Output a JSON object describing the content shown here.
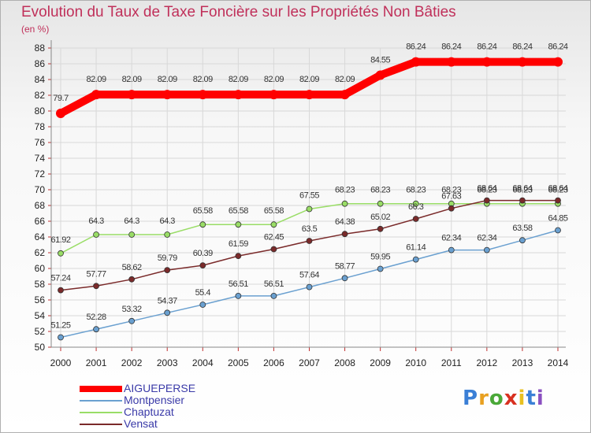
{
  "chart_data": {
    "type": "line",
    "title": "Evolution du Taux de Taxe Foncière sur les Propriétés Non Bâties",
    "ylabel": "(en %)",
    "x": [
      "2000",
      "2001",
      "2002",
      "2003",
      "2004",
      "2005",
      "2006",
      "2007",
      "2008",
      "2009",
      "2010",
      "2011",
      "2012",
      "2013",
      "2014"
    ],
    "ylim": [
      50,
      88
    ],
    "yticks": [
      50,
      52,
      54,
      56,
      58,
      60,
      62,
      64,
      66,
      68,
      70,
      72,
      74,
      76,
      78,
      80,
      82,
      84,
      86,
      88
    ],
    "grid": true,
    "legend_position": "bottom-left",
    "series": [
      {
        "name": "AIGUEPERSE",
        "color": "#ff0000",
        "values": [
          79.7,
          82.09,
          82.09,
          82.09,
          82.09,
          82.09,
          82.09,
          82.09,
          82.09,
          84.55,
          86.24,
          86.24,
          86.24,
          86.24,
          86.24
        ],
        "labels": [
          "79.7",
          "82.09",
          "82.09",
          "82.09",
          "82.09",
          "82.09",
          "82.09",
          "82.09",
          "82.09",
          "84.55",
          "86.24",
          "86.24",
          "86.24",
          "86.24",
          "86.24"
        ]
      },
      {
        "name": "Montpensier",
        "color": "#6aa0d0",
        "values": [
          51.25,
          52.28,
          53.32,
          54.37,
          55.4,
          56.51,
          56.51,
          57.64,
          58.77,
          59.95,
          61.14,
          62.34,
          62.34,
          63.58,
          64.85
        ],
        "labels": [
          "51.25",
          "52.28",
          "53.32",
          "54.37",
          "55.4",
          "56.51",
          "56.51",
          "57.64",
          "58.77",
          "59.95",
          "61.14",
          "62.34",
          "62.34",
          "63.58",
          "64.85"
        ]
      },
      {
        "name": "Chaptuzat",
        "color": "#99dd66",
        "values": [
          61.92,
          64.3,
          64.3,
          64.3,
          65.58,
          65.58,
          65.58,
          67.55,
          68.23,
          68.23,
          68.23,
          68.23,
          68.23,
          68.23,
          68.23
        ],
        "labels": [
          "61.92",
          "64.3",
          "64.3",
          "64.3",
          "65.58",
          "65.58",
          "65.58",
          "67.55",
          "68.23",
          "68.23",
          "68.23",
          "68.23",
          "68.23",
          "68.23",
          "68.23"
        ]
      },
      {
        "name": "Vensat",
        "color": "#7a2a2a",
        "values": [
          57.24,
          57.77,
          58.62,
          59.79,
          60.39,
          61.59,
          62.45,
          63.5,
          64.38,
          65.02,
          66.3,
          67.63,
          68.64,
          68.64,
          68.64
        ],
        "labels": [
          "57.24",
          "57.77",
          "58.62",
          "59.79",
          "60.39",
          "61.59",
          "62.45",
          "63.5",
          "64.38",
          "65.02",
          "66.3",
          "67.63",
          "68.64",
          "68.64",
          "68.64"
        ]
      }
    ]
  },
  "logo": {
    "letters": [
      "P",
      "r",
      "o",
      "x",
      "i",
      "t",
      "i"
    ],
    "colors": [
      "#3a7fd6",
      "#e8a020",
      "#4aa838",
      "#d83020",
      "#e8c020",
      "#3a7fd6",
      "#8a50c0"
    ]
  }
}
